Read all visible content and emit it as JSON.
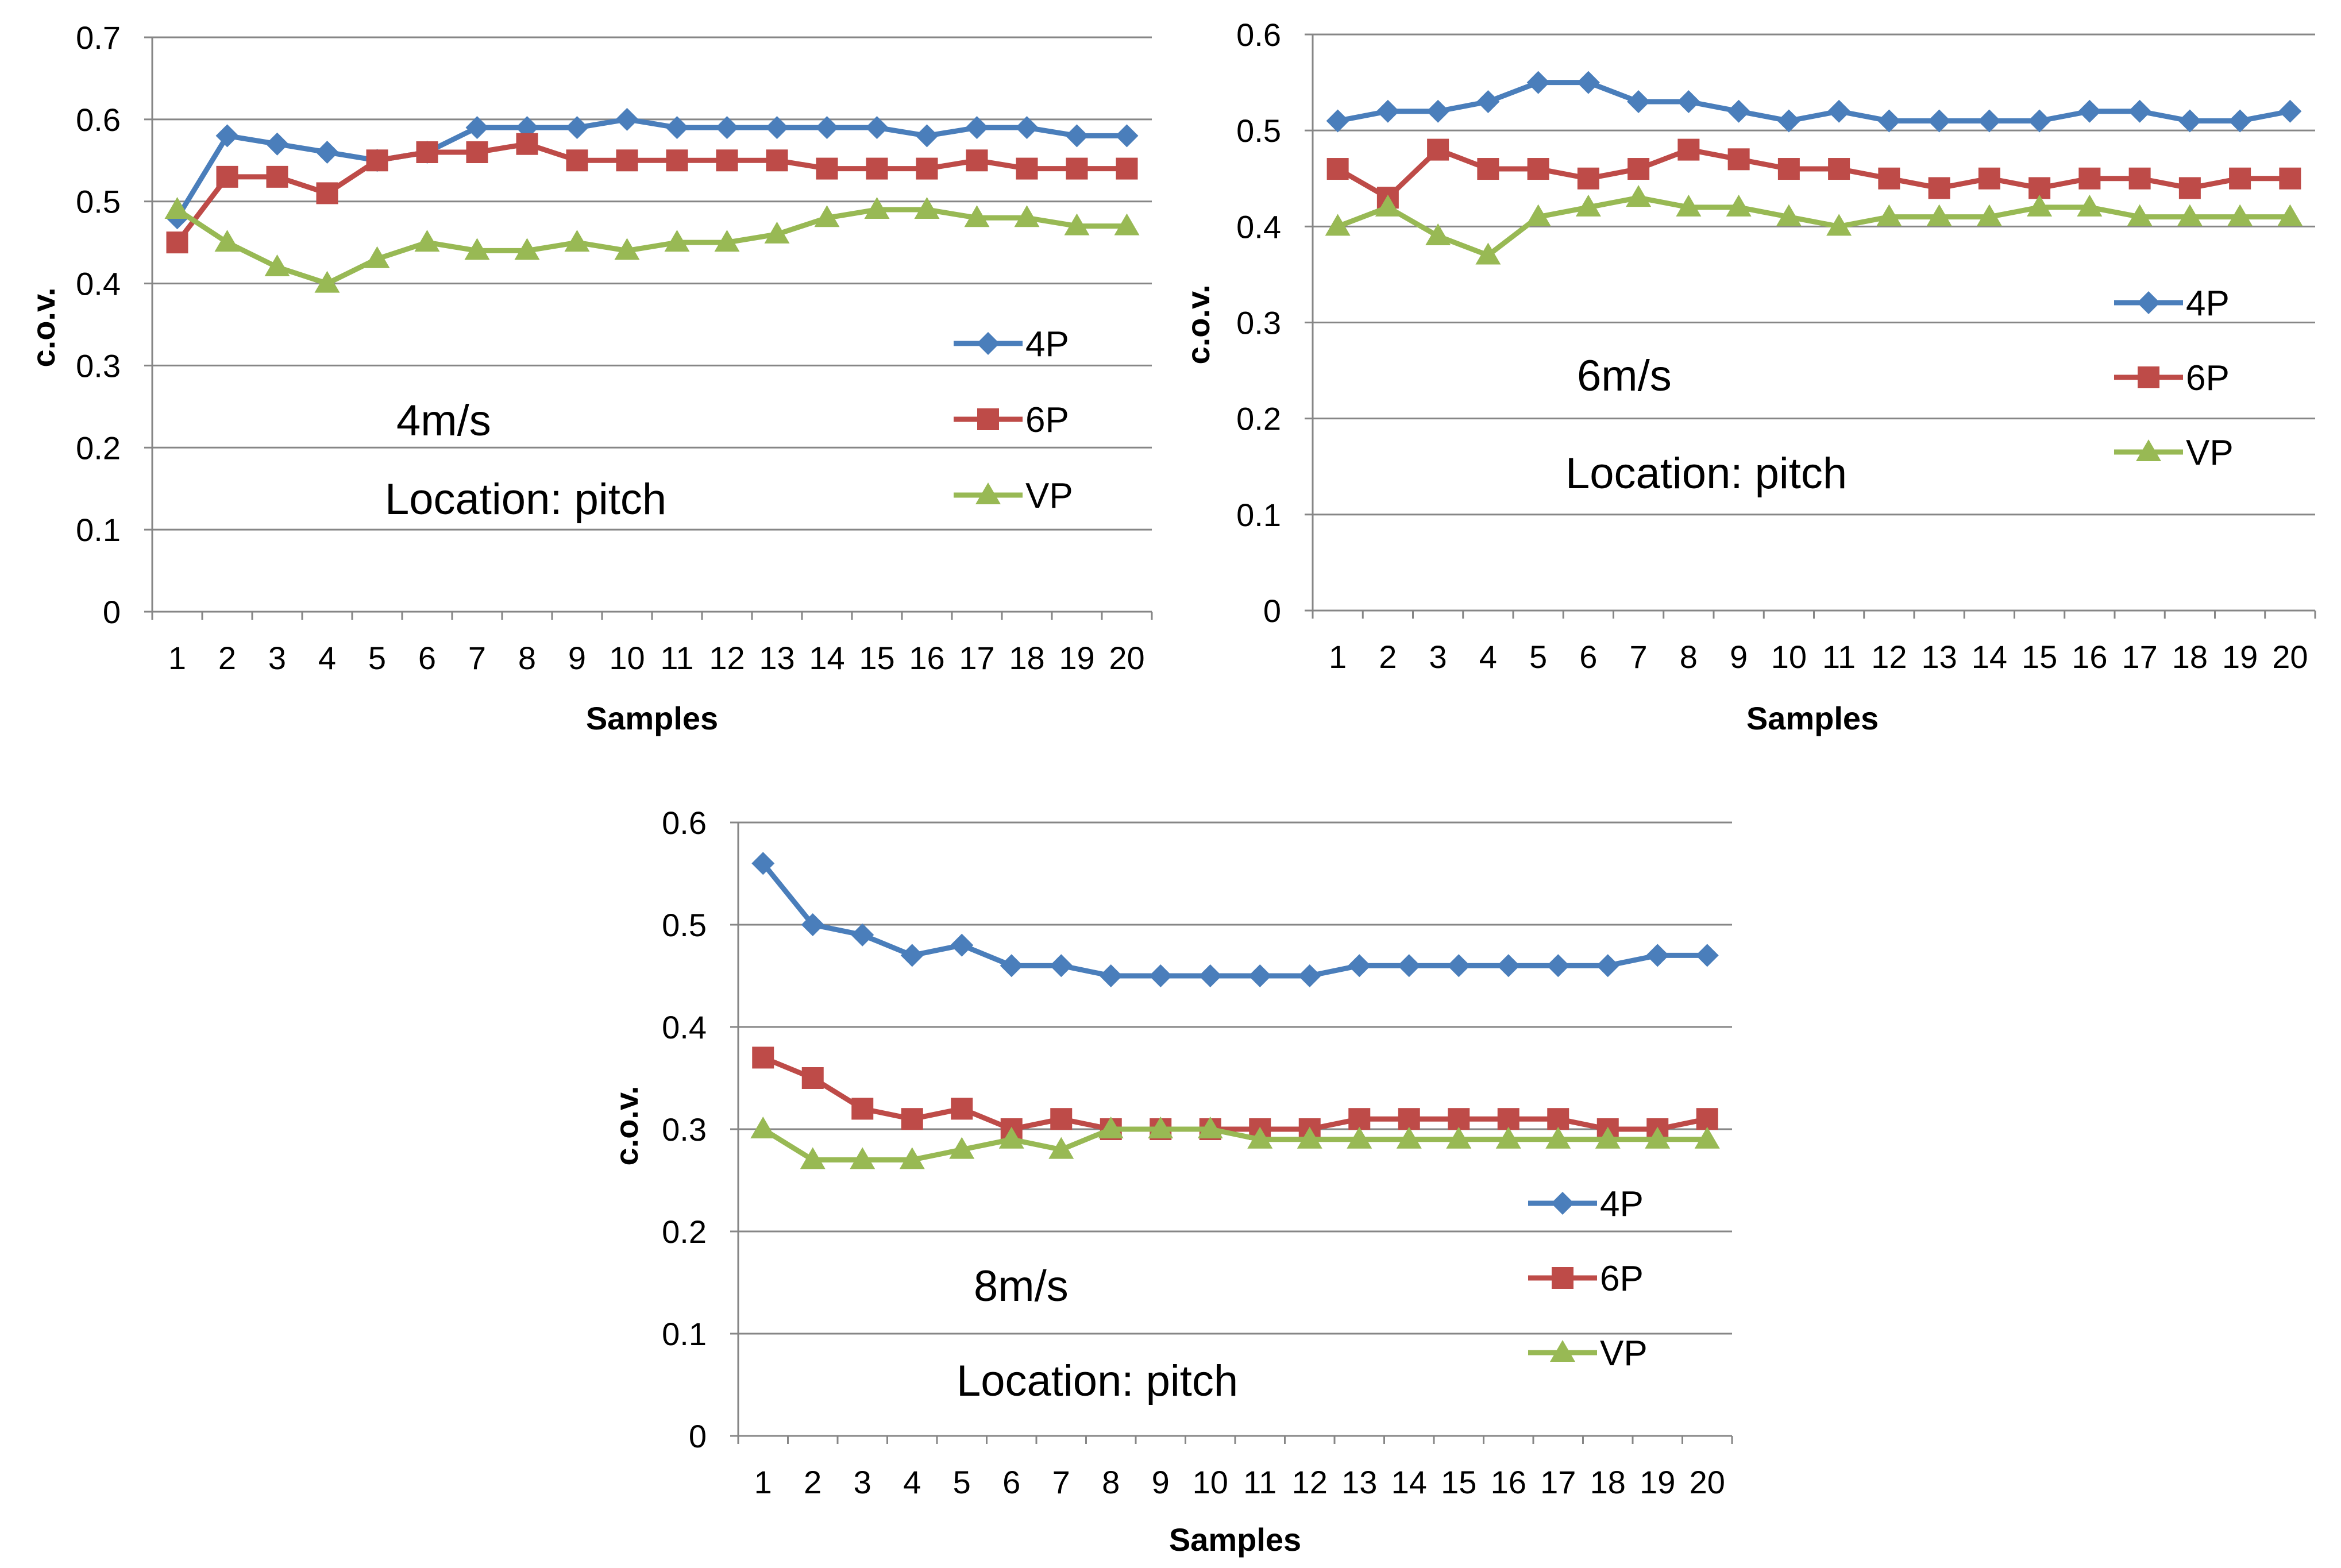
{
  "colors": {
    "4P": "#4a7ebb",
    "6P": "#be4b48",
    "VP": "#98b954",
    "grid": "#868686",
    "axis": "#868686"
  },
  "chart_data": [
    {
      "type": "line",
      "annotations": [
        "4m/s",
        "Location: pitch"
      ],
      "xlabel": "Samples",
      "ylabel": "c.o.v.",
      "ylim": [
        0,
        0.7
      ],
      "yticks": [
        "0",
        "0.1",
        "0.2",
        "0.3",
        "0.4",
        "0.5",
        "0.6",
        "0.7"
      ],
      "categories": [
        "1",
        "2",
        "3",
        "4",
        "5",
        "6",
        "7",
        "8",
        "9",
        "10",
        "11",
        "12",
        "13",
        "14",
        "15",
        "16",
        "17",
        "18",
        "19",
        "20"
      ],
      "legend_position": "right",
      "series": [
        {
          "name": "4P",
          "marker": "diamond",
          "values": [
            0.48,
            0.58,
            0.57,
            0.56,
            0.55,
            0.56,
            0.59,
            0.59,
            0.59,
            0.6,
            0.59,
            0.59,
            0.59,
            0.59,
            0.59,
            0.58,
            0.59,
            0.59,
            0.58,
            0.58
          ]
        },
        {
          "name": "6P",
          "marker": "square",
          "values": [
            0.45,
            0.53,
            0.53,
            0.51,
            0.55,
            0.56,
            0.56,
            0.57,
            0.55,
            0.55,
            0.55,
            0.55,
            0.55,
            0.54,
            0.54,
            0.54,
            0.55,
            0.54,
            0.54,
            0.54
          ]
        },
        {
          "name": "VP",
          "marker": "triangle",
          "values": [
            0.49,
            0.45,
            0.42,
            0.4,
            0.43,
            0.45,
            0.44,
            0.44,
            0.45,
            0.44,
            0.45,
            0.45,
            0.46,
            0.48,
            0.49,
            0.49,
            0.48,
            0.48,
            0.47,
            0.47
          ]
        }
      ]
    },
    {
      "type": "line",
      "annotations": [
        "6m/s",
        "Location: pitch"
      ],
      "xlabel": "Samples",
      "ylabel": "c.o.v.",
      "ylim": [
        0,
        0.6
      ],
      "yticks": [
        "0",
        "0.1",
        "0.2",
        "0.3",
        "0.4",
        "0.5",
        "0.6"
      ],
      "categories": [
        "1",
        "2",
        "3",
        "4",
        "5",
        "6",
        "7",
        "8",
        "9",
        "10",
        "11",
        "12",
        "13",
        "14",
        "15",
        "16",
        "17",
        "18",
        "19",
        "20"
      ],
      "legend_position": "right",
      "series": [
        {
          "name": "4P",
          "marker": "diamond",
          "values": [
            0.51,
            0.52,
            0.52,
            0.53,
            0.55,
            0.55,
            0.53,
            0.53,
            0.52,
            0.51,
            0.52,
            0.51,
            0.51,
            0.51,
            0.51,
            0.52,
            0.52,
            0.51,
            0.51,
            0.52
          ]
        },
        {
          "name": "6P",
          "marker": "square",
          "values": [
            0.46,
            0.43,
            0.48,
            0.46,
            0.46,
            0.45,
            0.46,
            0.48,
            0.47,
            0.46,
            0.46,
            0.45,
            0.44,
            0.45,
            0.44,
            0.45,
            0.45,
            0.44,
            0.45,
            0.45
          ]
        },
        {
          "name": "VP",
          "marker": "triangle",
          "values": [
            0.4,
            0.42,
            0.39,
            0.37,
            0.41,
            0.42,
            0.43,
            0.42,
            0.42,
            0.41,
            0.4,
            0.41,
            0.41,
            0.41,
            0.42,
            0.42,
            0.41,
            0.41,
            0.41,
            0.41
          ]
        }
      ]
    },
    {
      "type": "line",
      "annotations": [
        "8m/s",
        "Location: pitch"
      ],
      "xlabel": "Samples",
      "ylabel": "c.o.v.",
      "ylim": [
        0,
        0.6
      ],
      "yticks": [
        "0",
        "0.1",
        "0.2",
        "0.3",
        "0.4",
        "0.5",
        "0.6"
      ],
      "categories": [
        "1",
        "2",
        "3",
        "4",
        "5",
        "6",
        "7",
        "8",
        "9",
        "10",
        "11",
        "12",
        "13",
        "14",
        "15",
        "16",
        "17",
        "18",
        "19",
        "20"
      ],
      "legend_position": "right",
      "series": [
        {
          "name": "4P",
          "marker": "diamond",
          "values": [
            0.56,
            0.5,
            0.49,
            0.47,
            0.48,
            0.46,
            0.46,
            0.45,
            0.45,
            0.45,
            0.45,
            0.45,
            0.46,
            0.46,
            0.46,
            0.46,
            0.46,
            0.46,
            0.47,
            0.47
          ]
        },
        {
          "name": "6P",
          "marker": "square",
          "values": [
            0.37,
            0.35,
            0.32,
            0.31,
            0.32,
            0.3,
            0.31,
            0.3,
            0.3,
            0.3,
            0.3,
            0.3,
            0.31,
            0.31,
            0.31,
            0.31,
            0.31,
            0.3,
            0.3,
            0.31
          ]
        },
        {
          "name": "VP",
          "marker": "triangle",
          "values": [
            0.3,
            0.27,
            0.27,
            0.27,
            0.28,
            0.29,
            0.28,
            0.3,
            0.3,
            0.3,
            0.29,
            0.29,
            0.29,
            0.29,
            0.29,
            0.29,
            0.29,
            0.29,
            0.29,
            0.29
          ]
        }
      ]
    }
  ]
}
